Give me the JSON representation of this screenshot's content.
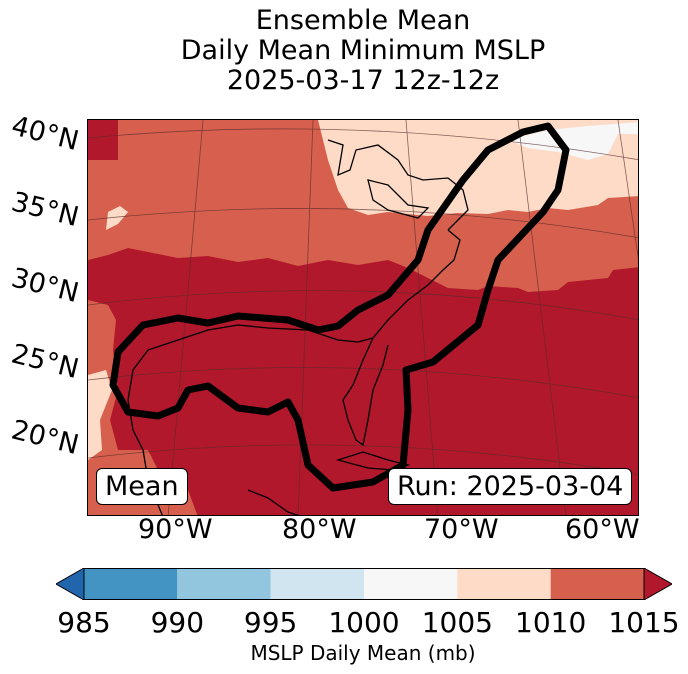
{
  "title": {
    "line1": "Ensemble Mean",
    "line2": "Daily Mean Minimum MSLP",
    "line3": "2025-03-17 12z-12z"
  },
  "map": {
    "lat_labels": [
      "40°N",
      "35°N",
      "30°N",
      "25°N",
      "20°N"
    ],
    "lon_labels": [
      "90°W",
      "80°W",
      "70°W",
      "60°W"
    ],
    "left_badge": "Mean",
    "right_badge": "Run: 2025-03-04",
    "contour_color": "#000000",
    "pressure_colors": {
      "1000-1005": "#f7f7f7",
      "1005-1010": "#fddbc7",
      "1010-1015": "#d6604d",
      "1015+": "#b2182b"
    }
  },
  "colorbar": {
    "ticks": [
      "985",
      "990",
      "995",
      "1000",
      "1005",
      "1010",
      "1015"
    ],
    "colors": [
      "#4393c3",
      "#92c5de",
      "#d1e5f0",
      "#f7f7f7",
      "#fddbc7",
      "#d6604d"
    ],
    "under_color": "#2166ac",
    "over_color": "#b2182b",
    "label": "MSLP Daily Mean (mb)"
  }
}
